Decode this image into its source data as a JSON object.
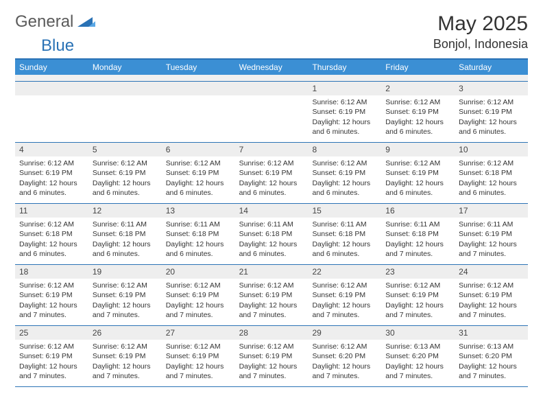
{
  "logo": {
    "text1": "General",
    "text2": "Blue",
    "color1": "#5a5a5a",
    "color2": "#2a72b5"
  },
  "title": "May 2025",
  "location": "Bonjol, Indonesia",
  "colors": {
    "header_bar": "#3b8fd4",
    "border": "#2a72b5",
    "daynum_bg": "#eeeeee",
    "spacer_bg": "#f0f0f0",
    "text": "#333333"
  },
  "days_of_week": [
    "Sunday",
    "Monday",
    "Tuesday",
    "Wednesday",
    "Thursday",
    "Friday",
    "Saturday"
  ],
  "weeks": [
    [
      {
        "n": "",
        "sr": "",
        "ss": "",
        "dl": ""
      },
      {
        "n": "",
        "sr": "",
        "ss": "",
        "dl": ""
      },
      {
        "n": "",
        "sr": "",
        "ss": "",
        "dl": ""
      },
      {
        "n": "",
        "sr": "",
        "ss": "",
        "dl": ""
      },
      {
        "n": "1",
        "sr": "Sunrise: 6:12 AM",
        "ss": "Sunset: 6:19 PM",
        "dl": "Daylight: 12 hours and 6 minutes."
      },
      {
        "n": "2",
        "sr": "Sunrise: 6:12 AM",
        "ss": "Sunset: 6:19 PM",
        "dl": "Daylight: 12 hours and 6 minutes."
      },
      {
        "n": "3",
        "sr": "Sunrise: 6:12 AM",
        "ss": "Sunset: 6:19 PM",
        "dl": "Daylight: 12 hours and 6 minutes."
      }
    ],
    [
      {
        "n": "4",
        "sr": "Sunrise: 6:12 AM",
        "ss": "Sunset: 6:19 PM",
        "dl": "Daylight: 12 hours and 6 minutes."
      },
      {
        "n": "5",
        "sr": "Sunrise: 6:12 AM",
        "ss": "Sunset: 6:19 PM",
        "dl": "Daylight: 12 hours and 6 minutes."
      },
      {
        "n": "6",
        "sr": "Sunrise: 6:12 AM",
        "ss": "Sunset: 6:19 PM",
        "dl": "Daylight: 12 hours and 6 minutes."
      },
      {
        "n": "7",
        "sr": "Sunrise: 6:12 AM",
        "ss": "Sunset: 6:19 PM",
        "dl": "Daylight: 12 hours and 6 minutes."
      },
      {
        "n": "8",
        "sr": "Sunrise: 6:12 AM",
        "ss": "Sunset: 6:19 PM",
        "dl": "Daylight: 12 hours and 6 minutes."
      },
      {
        "n": "9",
        "sr": "Sunrise: 6:12 AM",
        "ss": "Sunset: 6:19 PM",
        "dl": "Daylight: 12 hours and 6 minutes."
      },
      {
        "n": "10",
        "sr": "Sunrise: 6:12 AM",
        "ss": "Sunset: 6:18 PM",
        "dl": "Daylight: 12 hours and 6 minutes."
      }
    ],
    [
      {
        "n": "11",
        "sr": "Sunrise: 6:12 AM",
        "ss": "Sunset: 6:18 PM",
        "dl": "Daylight: 12 hours and 6 minutes."
      },
      {
        "n": "12",
        "sr": "Sunrise: 6:11 AM",
        "ss": "Sunset: 6:18 PM",
        "dl": "Daylight: 12 hours and 6 minutes."
      },
      {
        "n": "13",
        "sr": "Sunrise: 6:11 AM",
        "ss": "Sunset: 6:18 PM",
        "dl": "Daylight: 12 hours and 6 minutes."
      },
      {
        "n": "14",
        "sr": "Sunrise: 6:11 AM",
        "ss": "Sunset: 6:18 PM",
        "dl": "Daylight: 12 hours and 6 minutes."
      },
      {
        "n": "15",
        "sr": "Sunrise: 6:11 AM",
        "ss": "Sunset: 6:18 PM",
        "dl": "Daylight: 12 hours and 6 minutes."
      },
      {
        "n": "16",
        "sr": "Sunrise: 6:11 AM",
        "ss": "Sunset: 6:18 PM",
        "dl": "Daylight: 12 hours and 7 minutes."
      },
      {
        "n": "17",
        "sr": "Sunrise: 6:11 AM",
        "ss": "Sunset: 6:19 PM",
        "dl": "Daylight: 12 hours and 7 minutes."
      }
    ],
    [
      {
        "n": "18",
        "sr": "Sunrise: 6:12 AM",
        "ss": "Sunset: 6:19 PM",
        "dl": "Daylight: 12 hours and 7 minutes."
      },
      {
        "n": "19",
        "sr": "Sunrise: 6:12 AM",
        "ss": "Sunset: 6:19 PM",
        "dl": "Daylight: 12 hours and 7 minutes."
      },
      {
        "n": "20",
        "sr": "Sunrise: 6:12 AM",
        "ss": "Sunset: 6:19 PM",
        "dl": "Daylight: 12 hours and 7 minutes."
      },
      {
        "n": "21",
        "sr": "Sunrise: 6:12 AM",
        "ss": "Sunset: 6:19 PM",
        "dl": "Daylight: 12 hours and 7 minutes."
      },
      {
        "n": "22",
        "sr": "Sunrise: 6:12 AM",
        "ss": "Sunset: 6:19 PM",
        "dl": "Daylight: 12 hours and 7 minutes."
      },
      {
        "n": "23",
        "sr": "Sunrise: 6:12 AM",
        "ss": "Sunset: 6:19 PM",
        "dl": "Daylight: 12 hours and 7 minutes."
      },
      {
        "n": "24",
        "sr": "Sunrise: 6:12 AM",
        "ss": "Sunset: 6:19 PM",
        "dl": "Daylight: 12 hours and 7 minutes."
      }
    ],
    [
      {
        "n": "25",
        "sr": "Sunrise: 6:12 AM",
        "ss": "Sunset: 6:19 PM",
        "dl": "Daylight: 12 hours and 7 minutes."
      },
      {
        "n": "26",
        "sr": "Sunrise: 6:12 AM",
        "ss": "Sunset: 6:19 PM",
        "dl": "Daylight: 12 hours and 7 minutes."
      },
      {
        "n": "27",
        "sr": "Sunrise: 6:12 AM",
        "ss": "Sunset: 6:19 PM",
        "dl": "Daylight: 12 hours and 7 minutes."
      },
      {
        "n": "28",
        "sr": "Sunrise: 6:12 AM",
        "ss": "Sunset: 6:19 PM",
        "dl": "Daylight: 12 hours and 7 minutes."
      },
      {
        "n": "29",
        "sr": "Sunrise: 6:12 AM",
        "ss": "Sunset: 6:20 PM",
        "dl": "Daylight: 12 hours and 7 minutes."
      },
      {
        "n": "30",
        "sr": "Sunrise: 6:13 AM",
        "ss": "Sunset: 6:20 PM",
        "dl": "Daylight: 12 hours and 7 minutes."
      },
      {
        "n": "31",
        "sr": "Sunrise: 6:13 AM",
        "ss": "Sunset: 6:20 PM",
        "dl": "Daylight: 12 hours and 7 minutes."
      }
    ]
  ]
}
